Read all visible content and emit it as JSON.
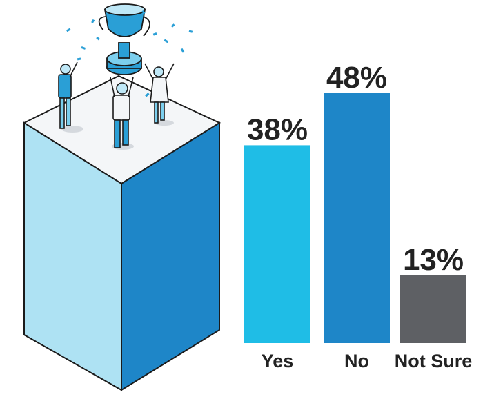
{
  "chart_data": {
    "type": "bar",
    "categories": [
      "Yes",
      "No",
      "Not Sure"
    ],
    "values": [
      38,
      48,
      13
    ],
    "value_labels": [
      "38%",
      "48%",
      "13%"
    ],
    "colors": [
      "#1FBDE6",
      "#1E86C8",
      "#5E6064"
    ],
    "title": "",
    "xlabel": "",
    "ylabel": "",
    "ylim": [
      0,
      48
    ],
    "grid": false,
    "legend": "none"
  },
  "illustration": {
    "description_icon": "trophy-celebration-icon",
    "colors": {
      "top": "#F4F6F8",
      "front": "#AEE2F3",
      "side": "#1E86C8",
      "outline": "#1B1B1B",
      "figure": "#2A9FD6"
    }
  }
}
